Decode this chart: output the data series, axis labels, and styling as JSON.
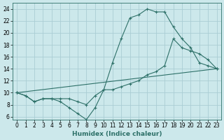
{
  "xlabel": "Humidex (Indice chaleur)",
  "bg_color": "#cce8eb",
  "grid_color": "#aacdd4",
  "line_color": "#2d7068",
  "xlim": [
    -0.5,
    23.5
  ],
  "ylim": [
    5.5,
    25.0
  ],
  "xticks": [
    0,
    1,
    2,
    3,
    4,
    5,
    6,
    7,
    8,
    9,
    10,
    11,
    12,
    13,
    14,
    15,
    16,
    17,
    18,
    19,
    20,
    21,
    22,
    23
  ],
  "yticks": [
    6,
    8,
    10,
    12,
    14,
    16,
    18,
    20,
    22,
    24
  ],
  "line1_x": [
    0,
    1,
    2,
    3,
    4,
    5,
    6,
    7,
    8,
    9,
    10,
    11,
    12,
    13,
    14,
    15,
    16,
    17,
    18,
    19,
    20,
    21,
    22,
    23
  ],
  "line1_y": [
    10,
    9.5,
    8.5,
    9.0,
    9.0,
    8.5,
    7.5,
    6.5,
    5.5,
    7.5,
    10.5,
    15.0,
    19.0,
    22.5,
    23.0,
    24.0,
    23.5,
    23.5,
    21.0,
    19.0,
    17.5,
    15.0,
    14.5,
    14.0
  ],
  "line2_x": [
    0,
    1,
    2,
    3,
    4,
    5,
    6,
    7,
    8,
    9,
    10,
    11,
    12,
    13,
    14,
    15,
    16,
    17,
    18,
    19,
    20,
    21,
    22,
    23
  ],
  "line2_y": [
    10,
    9.5,
    8.5,
    9.0,
    9.0,
    9.0,
    9.0,
    8.5,
    8.0,
    9.5,
    10.5,
    10.5,
    11.0,
    11.5,
    12.0,
    13.0,
    13.5,
    14.5,
    19.0,
    17.5,
    17.0,
    16.5,
    15.5,
    14.0
  ],
  "line3_x": [
    0,
    23
  ],
  "line3_y": [
    10,
    14.0
  ],
  "xlabel_fontsize": 6.5,
  "tick_fontsize": 5.5
}
